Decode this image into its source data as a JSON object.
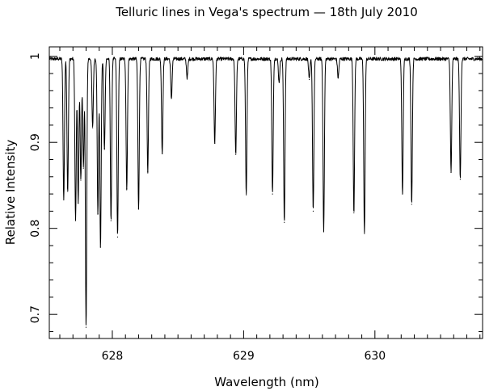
{
  "chart_data": {
    "type": "line",
    "title": "Telluric lines in Vega's spectrum — 18th July 2010",
    "xlabel": "Wavelength (nm)",
    "ylabel": "Relative Intensity",
    "xlim": [
      627.52,
      630.82
    ],
    "ylim": [
      0.672,
      1.011
    ],
    "x_ticks": [
      628,
      629,
      630
    ],
    "x_tick_labels": [
      "628",
      "629",
      "630"
    ],
    "y_ticks": [
      0.7,
      0.8,
      0.9,
      1.0
    ],
    "y_tick_labels": [
      "0.7",
      "0.8",
      "0.9",
      "1"
    ],
    "x_minor_step": 0.1,
    "y_minor_step": 0.02,
    "continuum": 0.997,
    "series": [
      {
        "name": "Vega spectrum",
        "color": "#000000",
        "absorption_lines": [
          {
            "x": 627.63,
            "y": 0.833
          },
          {
            "x": 627.66,
            "y": 0.843
          },
          {
            "x": 627.72,
            "y": 0.809
          },
          {
            "x": 627.74,
            "y": 0.829
          },
          {
            "x": 627.76,
            "y": 0.856
          },
          {
            "x": 627.78,
            "y": 0.87
          },
          {
            "x": 627.8,
            "y": 0.685
          },
          {
            "x": 627.85,
            "y": 0.917
          },
          {
            "x": 627.89,
            "y": 0.817
          },
          {
            "x": 627.91,
            "y": 0.778
          },
          {
            "x": 627.94,
            "y": 0.893
          },
          {
            "x": 627.99,
            "y": 0.809
          },
          {
            "x": 628.04,
            "y": 0.79
          },
          {
            "x": 628.11,
            "y": 0.846
          },
          {
            "x": 628.2,
            "y": 0.823
          },
          {
            "x": 628.27,
            "y": 0.866
          },
          {
            "x": 628.38,
            "y": 0.887
          },
          {
            "x": 628.45,
            "y": 0.951
          },
          {
            "x": 628.57,
            "y": 0.975
          },
          {
            "x": 628.78,
            "y": 0.899
          },
          {
            "x": 628.94,
            "y": 0.886
          },
          {
            "x": 629.02,
            "y": 0.839
          },
          {
            "x": 629.22,
            "y": 0.84
          },
          {
            "x": 629.27,
            "y": 0.97
          },
          {
            "x": 629.31,
            "y": 0.807
          },
          {
            "x": 629.5,
            "y": 0.973
          },
          {
            "x": 629.53,
            "y": 0.82
          },
          {
            "x": 629.61,
            "y": 0.797
          },
          {
            "x": 629.72,
            "y": 0.975
          },
          {
            "x": 629.84,
            "y": 0.818
          },
          {
            "x": 629.92,
            "y": 0.794
          },
          {
            "x": 630.21,
            "y": 0.84
          },
          {
            "x": 630.28,
            "y": 0.828
          },
          {
            "x": 630.58,
            "y": 0.865
          },
          {
            "x": 630.65,
            "y": 0.857
          }
        ]
      }
    ]
  }
}
